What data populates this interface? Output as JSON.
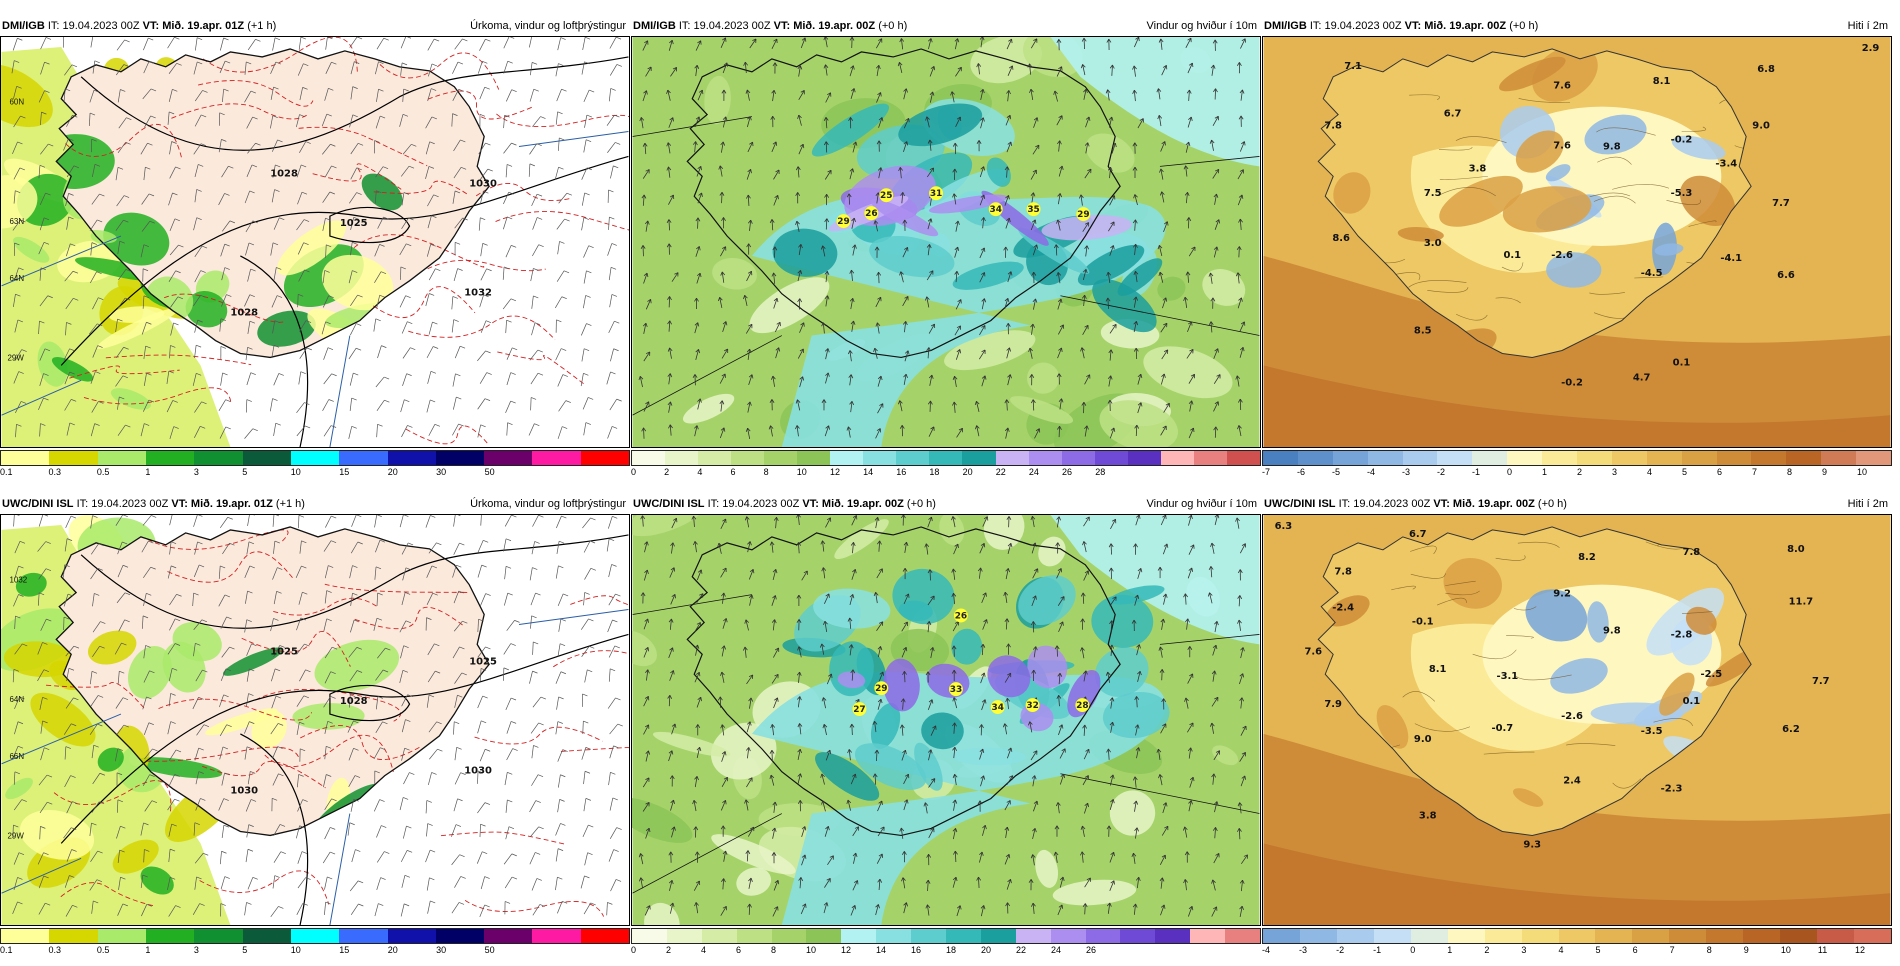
{
  "panels": [
    {
      "id": "dmi-precip",
      "model": "DMI/IGB",
      "it_label": "IT: 19.04.2023 00Z",
      "vt_label": "VT: Mið. 19.apr. 01Z",
      "lead": "(+1 h)",
      "field_title": "Úrkoma, vindur og loftþrýstingur",
      "colorbar": {
        "colors": [
          "#ffff9a",
          "#d6d600",
          "#a9ea6a",
          "#22b022",
          "#109030",
          "#0b5a3a",
          "#00ffff",
          "#3a6bff",
          "#1010aa",
          "#000066",
          "#6b006b",
          "#ff1aa3",
          "#ff0000"
        ],
        "ticks": [
          "0.1",
          "0.3",
          "0.5",
          "1",
          "3",
          "5",
          "10",
          "15",
          "20",
          "30",
          "50"
        ]
      },
      "labels": [
        "1028",
        "1025",
        "1028",
        "1030",
        "1032",
        "60N",
        "64N",
        "63N",
        "29W"
      ]
    },
    {
      "id": "dmi-wind",
      "model": "DMI/IGB",
      "it_label": "IT: 19.04.2023 00Z",
      "vt_label": "VT: Mið. 19.apr. 00Z",
      "lead": "(+0 h)",
      "field_title": "Vindur og hviður í 10m",
      "colorbar": {
        "colors": [
          "#f7fbe8",
          "#e8f5c8",
          "#d4eca6",
          "#bde085",
          "#a5d36a",
          "#8cc457",
          "#b2f2f2",
          "#88e0e0",
          "#5ecdcd",
          "#35b8b8",
          "#1a9e9e",
          "#c9b3f5",
          "#ab8ef0",
          "#8d6ae6",
          "#6f4ad6",
          "#5a30c0",
          "#ffb6b6",
          "#e88080",
          "#d05050"
        ],
        "ticks": [
          "0",
          "2",
          "4",
          "6",
          "8",
          "10",
          "12",
          "14",
          "16",
          "18",
          "20",
          "22",
          "24",
          "26",
          "28"
        ]
      },
      "gusts": [
        "25",
        "31",
        "29",
        "26",
        "34",
        "35",
        "29"
      ]
    },
    {
      "id": "dmi-temp",
      "model": "DMI/IGB",
      "it_label": "IT: 19.04.2023 00Z",
      "vt_label": "VT: Mið. 19.apr. 00Z",
      "lead": "(+0 h)",
      "field_title": "Hiti í 2m",
      "colorbar": {
        "colors": [
          "#4a7fc0",
          "#5e91cc",
          "#76a4d8",
          "#8fb8e4",
          "#a8cbee",
          "#c4dff6",
          "#dfeee0",
          "#fff7c0",
          "#fbeb98",
          "#f5dc7a",
          "#edc864",
          "#e4b452",
          "#daa044",
          "#cf8c38",
          "#c4782e",
          "#b86526",
          "#d07a56",
          "#e0977a"
        ],
        "ticks": [
          "-7",
          "-6",
          "-5",
          "-4",
          "-3",
          "-2",
          "-1",
          "0",
          "1",
          "2",
          "3",
          "4",
          "5",
          "6",
          "7",
          "8",
          "9",
          "10"
        ]
      },
      "values": [
        "7.1",
        "6.7",
        "7.6",
        "8.1",
        "6.8",
        "2.9",
        "7.8",
        "7.6",
        "9.8",
        "-0.2",
        "9.0",
        "3.8",
        "-3.4",
        "7.5",
        "-5.3",
        "7.7",
        "8.6",
        "3.0",
        "0.1",
        "-2.6",
        "-4.1",
        "-4.5",
        "6.6",
        "8.5",
        "0.1",
        "-0.2",
        "4.7"
      ]
    },
    {
      "id": "uwc-precip",
      "model": "UWC/DINI ISL",
      "it_label": "IT: 19.04.2023 00Z",
      "vt_label": "VT: Mið. 19.apr. 01Z",
      "lead": "(+1 h)",
      "field_title": "Úrkoma, vindur og loftþrýstingur",
      "colorbar": {
        "colors": [
          "#ffff9a",
          "#d6d600",
          "#a9ea6a",
          "#22b022",
          "#109030",
          "#0b5a3a",
          "#00ffff",
          "#3a6bff",
          "#1010aa",
          "#000066",
          "#6b006b",
          "#ff1aa3",
          "#ff0000"
        ],
        "ticks": [
          "0.1",
          "0.3",
          "0.5",
          "1",
          "3",
          "5",
          "10",
          "15",
          "20",
          "30",
          "50"
        ]
      },
      "labels": [
        "1025",
        "1028",
        "1030",
        "1025",
        "1030",
        "1032",
        "66N",
        "64N",
        "29W"
      ]
    },
    {
      "id": "uwc-wind",
      "model": "UWC/DINI ISL",
      "it_label": "IT: 19.04.2023 00Z",
      "vt_label": "VT: Mið. 19.apr. 00Z",
      "lead": "(+0 h)",
      "field_title": "Vindur og hviður í 10m",
      "colorbar": {
        "colors": [
          "#f7fbe8",
          "#e8f5c8",
          "#d4eca6",
          "#bde085",
          "#a5d36a",
          "#8cc457",
          "#b2f2f2",
          "#88e0e0",
          "#5ecdcd",
          "#35b8b8",
          "#1a9e9e",
          "#c9b3f5",
          "#ab8ef0",
          "#8d6ae6",
          "#6f4ad6",
          "#5a30c0",
          "#ffb6b6",
          "#e88080"
        ],
        "ticks": [
          "0",
          "2",
          "4",
          "6",
          "8",
          "10",
          "12",
          "14",
          "16",
          "18",
          "20",
          "22",
          "24",
          "26"
        ]
      },
      "gusts": [
        "26",
        "29",
        "33",
        "27",
        "34",
        "32",
        "28"
      ]
    },
    {
      "id": "uwc-temp",
      "model": "UWC/DINI ISL",
      "it_label": "IT: 19.04.2023 00Z",
      "vt_label": "VT: Mið. 19.apr. 00Z",
      "lead": "(+0 h)",
      "field_title": "Hiti í 2m",
      "colorbar": {
        "colors": [
          "#76a4d8",
          "#8fb8e4",
          "#a8cbee",
          "#c4dff6",
          "#dfeee0",
          "#fff7c0",
          "#fbeb98",
          "#f5dc7a",
          "#edc864",
          "#e4b452",
          "#daa044",
          "#cf8c38",
          "#c4782e",
          "#b86526",
          "#a95520",
          "#c85a48",
          "#d86e5a"
        ],
        "ticks": [
          "-4",
          "-3",
          "-2",
          "-1",
          "0",
          "1",
          "2",
          "3",
          "4",
          "5",
          "6",
          "7",
          "8",
          "9",
          "10",
          "11",
          "12"
        ]
      },
      "values": [
        "6.3",
        "6.7",
        "8.2",
        "7.8",
        "8.0",
        "7.8",
        "9.2",
        "11.7",
        "-2.4",
        "-0.1",
        "9.8",
        "-2.8",
        "7.6",
        "8.1",
        "-3.1",
        "-2.5",
        "7.7",
        "0.1",
        "7.9",
        "-0.7",
        "-2.6",
        "-3.5",
        "6.2",
        "9.0",
        "2.4",
        "-2.3",
        "3.8",
        "9.3"
      ]
    }
  ]
}
